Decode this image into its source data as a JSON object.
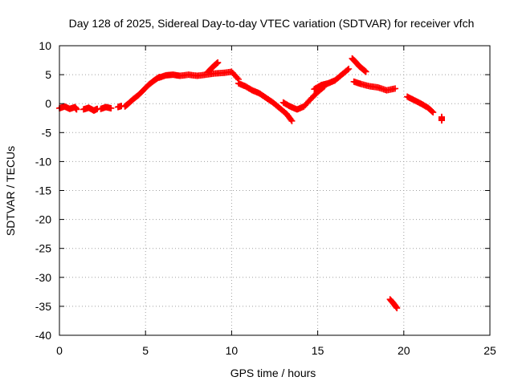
{
  "chart_data": {
    "type": "scatter",
    "title": "Day 128 of 2025, Sidereal Day-to-day VTEC variation (SDTVAR) for receiver vfch",
    "xlabel": "GPS time / hours",
    "ylabel": "SDTVAR / TECUs",
    "xlim": [
      0,
      25
    ],
    "ylim": [
      -40,
      10
    ],
    "xticks": [
      0,
      5,
      10,
      15,
      20,
      25
    ],
    "yticks": [
      -40,
      -35,
      -30,
      -25,
      -20,
      -15,
      -10,
      -5,
      0,
      5,
      10
    ],
    "grid": true,
    "marker": "+",
    "color": "#ff0000",
    "series": [
      {
        "name": "SDTVAR",
        "segments": [
          {
            "x": [
              0.0,
              0.3,
              0.6,
              0.9,
              1.0
            ],
            "y": [
              -0.8,
              -0.5,
              -0.9,
              -0.6,
              -1.0
            ]
          },
          {
            "x": [
              1.4,
              1.7,
              2.0,
              2.2
            ],
            "y": [
              -1.0,
              -0.7,
              -1.2,
              -0.9
            ]
          },
          {
            "x": [
              2.4,
              2.7,
              3.0
            ],
            "y": [
              -0.9,
              -0.6,
              -0.8
            ]
          },
          {
            "x": [
              3.4,
              3.6
            ],
            "y": [
              -0.6,
              -0.4
            ]
          },
          {
            "x": [
              3.8,
              4.0,
              4.3,
              4.6,
              4.9,
              5.2,
              5.5,
              5.8
            ],
            "y": [
              -0.5,
              0.0,
              0.8,
              1.5,
              2.4,
              3.3,
              4.0,
              4.6
            ]
          },
          {
            "x": [
              5.8,
              6.2,
              6.6,
              7.0,
              7.5,
              8.0,
              8.5,
              9.0,
              9.5,
              10.0,
              10.4
            ],
            "y": [
              4.5,
              4.9,
              5.0,
              4.8,
              5.0,
              4.8,
              5.0,
              5.2,
              5.3,
              5.5,
              4.2
            ]
          },
          {
            "x": [
              8.6,
              8.8,
              9.0,
              9.2
            ],
            "y": [
              5.4,
              6.0,
              6.6,
              7.1
            ]
          },
          {
            "x": [
              10.4,
              10.8,
              11.2,
              11.6,
              12.0,
              12.4,
              12.8,
              13.2,
              13.5
            ],
            "y": [
              3.5,
              3.0,
              2.3,
              1.8,
              1.0,
              0.2,
              -0.8,
              -1.8,
              -3.0
            ]
          },
          {
            "x": [
              13.0,
              13.4,
              13.8,
              14.2,
              14.6,
              15.0,
              15.4
            ],
            "y": [
              0.2,
              -0.5,
              -1.0,
              -0.5,
              0.8,
              2.0,
              3.0
            ]
          },
          {
            "x": [
              14.8,
              15.2,
              15.6,
              16.0,
              16.4,
              16.8
            ],
            "y": [
              2.5,
              3.2,
              3.5,
              4.0,
              5.0,
              6.0
            ]
          },
          {
            "x": [
              17.0,
              17.2,
              17.4,
              17.6,
              17.8
            ],
            "y": [
              7.8,
              7.2,
              6.5,
              6.0,
              5.5
            ]
          },
          {
            "x": [
              17.1,
              17.5,
              18.0,
              18.5,
              19.0,
              19.5
            ],
            "y": [
              3.8,
              3.4,
              3.0,
              2.8,
              2.3,
              2.6
            ]
          },
          {
            "x": [
              19.2,
              19.4,
              19.6
            ],
            "y": [
              -33.8,
              -34.5,
              -35.3
            ]
          },
          {
            "x": [
              20.2,
              20.6,
              21.0,
              21.4,
              21.7
            ],
            "y": [
              1.2,
              0.6,
              0.0,
              -0.7,
              -1.5
            ]
          },
          {
            "x": [
              22.2,
              22.2
            ],
            "y": [
              -2.3,
              -2.9
            ]
          }
        ]
      }
    ]
  }
}
